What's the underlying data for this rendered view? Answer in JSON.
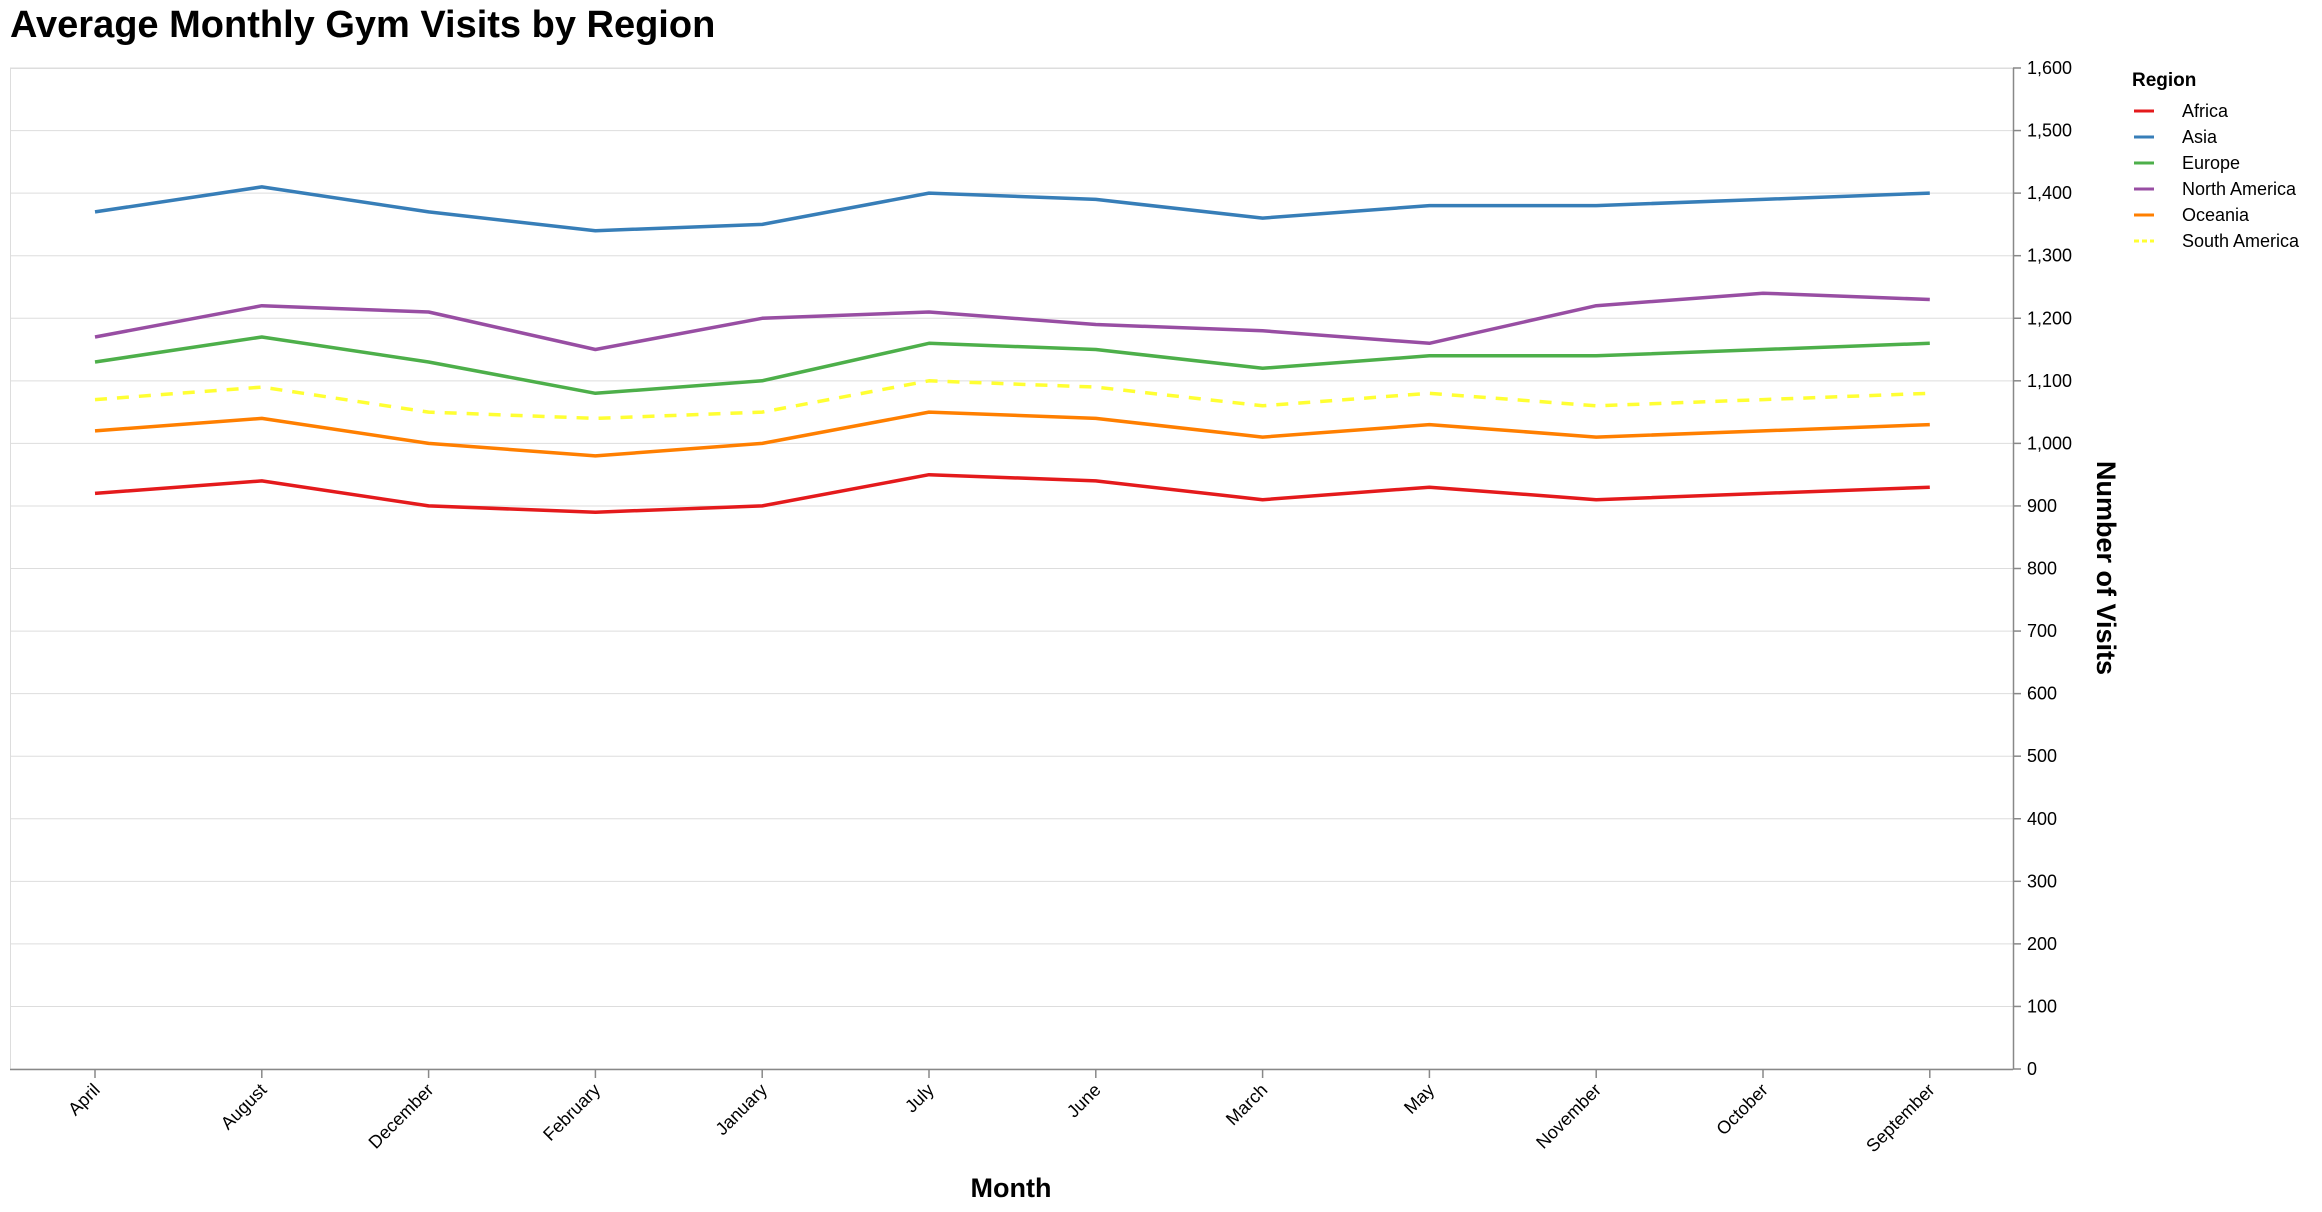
{
  "chart_data": {
    "type": "line",
    "title": "Average Monthly Gym Visits by Region",
    "xlabel": "Month",
    "ylabel": "Number of Visits",
    "ylim": [
      0,
      1600
    ],
    "yticks": [
      0,
      100,
      200,
      300,
      400,
      500,
      600,
      700,
      800,
      900,
      1000,
      1100,
      1200,
      1300,
      1400,
      1500,
      1600
    ],
    "ytick_labels": [
      "0",
      "100",
      "200",
      "300",
      "400",
      "500",
      "600",
      "700",
      "800",
      "900",
      "1,000",
      "1,100",
      "1,200",
      "1,300",
      "1,400",
      "1,500",
      "1,600"
    ],
    "y_axis_side": "right",
    "grid": true,
    "legend_title": "Region",
    "legend_position": "top-right",
    "categories": [
      "April",
      "August",
      "December",
      "February",
      "January",
      "July",
      "June",
      "March",
      "May",
      "November",
      "October",
      "September"
    ],
    "series": [
      {
        "name": "Africa",
        "color": "#e41a1c",
        "dash": "solid",
        "values": [
          920,
          940,
          900,
          890,
          900,
          950,
          940,
          910,
          930,
          910,
          920,
          930
        ]
      },
      {
        "name": "Asia",
        "color": "#377eb8",
        "dash": "solid",
        "values": [
          1370,
          1410,
          1370,
          1340,
          1350,
          1400,
          1390,
          1360,
          1380,
          1380,
          1390,
          1400
        ]
      },
      {
        "name": "Europe",
        "color": "#4daf4a",
        "dash": "solid",
        "values": [
          1130,
          1170,
          1130,
          1080,
          1100,
          1160,
          1150,
          1120,
          1140,
          1140,
          1150,
          1160
        ]
      },
      {
        "name": "North America",
        "color": "#984ea3",
        "dash": "solid",
        "values": [
          1170,
          1220,
          1210,
          1150,
          1200,
          1210,
          1190,
          1180,
          1160,
          1220,
          1240,
          1230
        ]
      },
      {
        "name": "Oceania",
        "color": "#ff7f00",
        "dash": "solid",
        "values": [
          1020,
          1040,
          1000,
          980,
          1000,
          1050,
          1040,
          1010,
          1030,
          1010,
          1020,
          1030
        ]
      },
      {
        "name": "South America",
        "color": "#ffff33",
        "dash": "dashed",
        "values": [
          1070,
          1090,
          1050,
          1040,
          1050,
          1100,
          1090,
          1060,
          1080,
          1060,
          1070,
          1080
        ]
      }
    ]
  }
}
